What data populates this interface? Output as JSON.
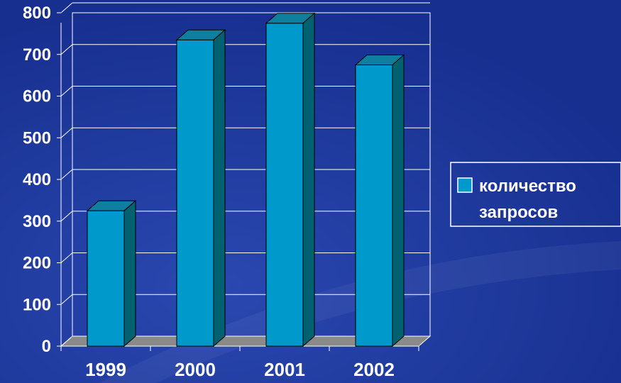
{
  "chart_data": {
    "type": "bar",
    "categories": [
      "1999",
      "2000",
      "2001",
      "2002"
    ],
    "series": [
      {
        "name": "количество запросов",
        "values": [
          325,
          735,
          775,
          675
        ]
      }
    ],
    "ylim": [
      0,
      800
    ],
    "yticks": [
      0,
      100,
      200,
      300,
      400,
      500,
      600,
      700,
      800
    ],
    "legend": {
      "placement": "right",
      "lines": [
        "количество",
        "запросов"
      ]
    },
    "grid": true,
    "colors": {
      "bar_front": "#0099cc",
      "bar_top": "#0e7f9f",
      "bar_side": "#006170",
      "floor": "#8a8a8a",
      "background": "#172f8f",
      "grid": "#ffffff"
    }
  }
}
